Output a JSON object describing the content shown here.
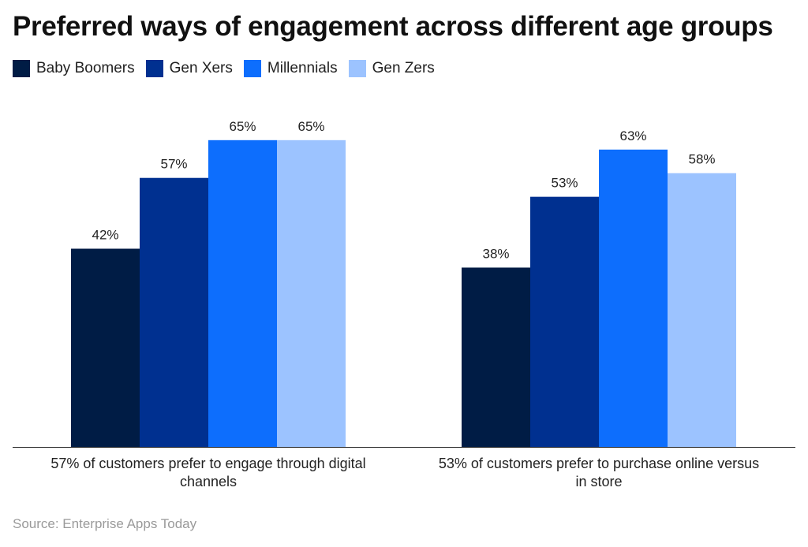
{
  "title": "Preferred ways of engagement across different age groups",
  "source": "Source: Enterprise Apps Today",
  "chart_data": {
    "type": "bar",
    "categories": [
      "57% of customers prefer to engage through digital channels",
      "53% of customers prefer to purchase online versus in store"
    ],
    "category_lines": [
      [
        "57% of customers prefer to engage through digital",
        "channels"
      ],
      [
        "53% of customers prefer to purchase online versus",
        "in store"
      ]
    ],
    "series": [
      {
        "name": "Baby Boomers",
        "values": [
          42,
          38
        ],
        "color": "#001c45"
      },
      {
        "name": "Gen Xers",
        "values": [
          57,
          53
        ],
        "color": "#003090"
      },
      {
        "name": "Millennials",
        "values": [
          65,
          63
        ],
        "color": "#0d6efd"
      },
      {
        "name": "Gen Zers",
        "values": [
          65,
          58
        ],
        "color": "#9cc3ff"
      }
    ],
    "value_suffix": "%",
    "ylim": [
      0,
      80
    ],
    "grid": false,
    "legend_position": "top-left",
    "title": "Preferred ways of engagement across different age groups",
    "xlabel": "",
    "ylabel": ""
  }
}
